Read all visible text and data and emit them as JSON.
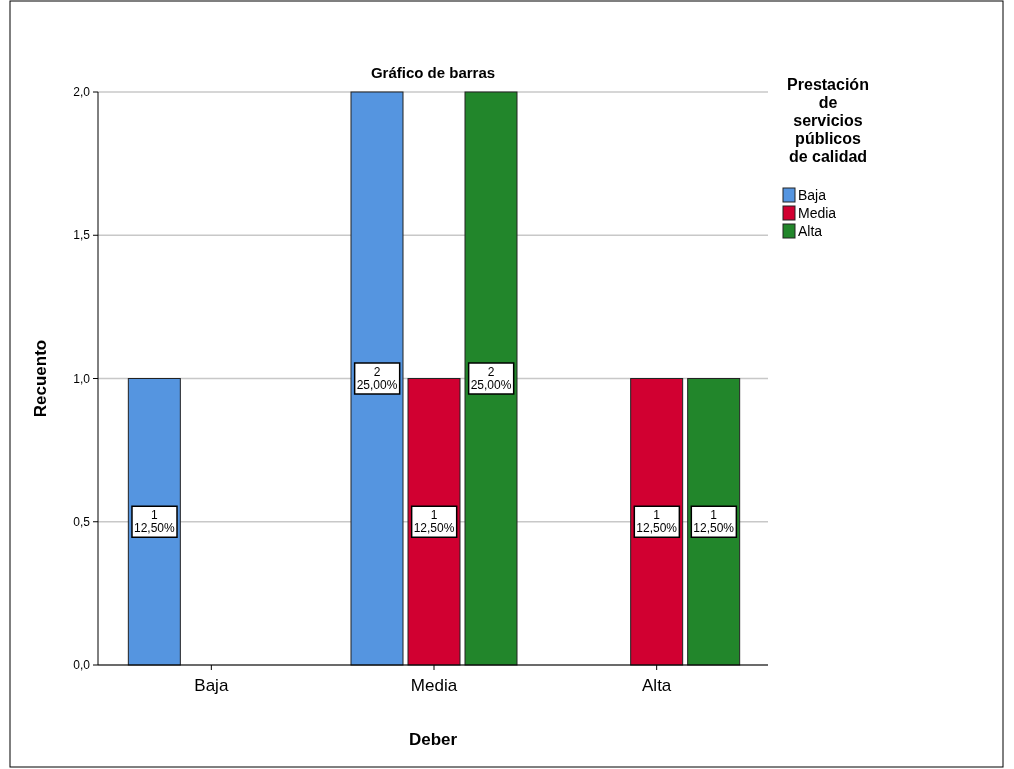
{
  "chart_data": {
    "type": "bar",
    "title": "Gráfico de barras",
    "xlabel": "Deber",
    "ylabel": "Recuento",
    "legend_title": "Prestación de servicios públicos de calidad",
    "categories": [
      "Baja",
      "Media",
      "Alta"
    ],
    "series": [
      {
        "name": "Baja",
        "color": "#5595e0",
        "values": [
          1,
          2,
          null
        ],
        "value_labels": [
          "1\n12,50%",
          "2\n25,00%",
          null
        ]
      },
      {
        "name": "Media",
        "color": "#d10031",
        "values": [
          null,
          1,
          1
        ],
        "value_labels": [
          null,
          "1\n12,50%",
          "1\n12,50%"
        ]
      },
      {
        "name": "Alta",
        "color": "#22862b",
        "values": [
          null,
          2,
          1
        ],
        "value_labels": [
          null,
          "2\n25,00%",
          "1\n12,50%"
        ]
      }
    ],
    "ylim": [
      0,
      2
    ],
    "yticks": [
      {
        "value": 0,
        "label": "0,0"
      },
      {
        "value": 0.5,
        "label": "0,5"
      },
      {
        "value": 1,
        "label": "1,0"
      },
      {
        "value": 1.5,
        "label": "1,5"
      },
      {
        "value": 2,
        "label": "2,0"
      }
    ],
    "grid": "y",
    "legend": "top right"
  }
}
